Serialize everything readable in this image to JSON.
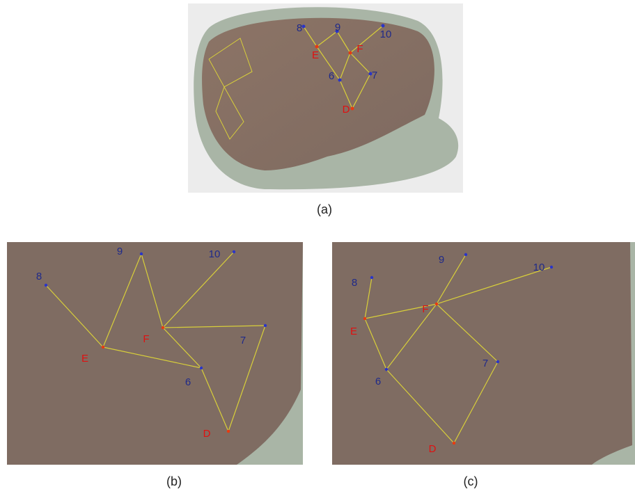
{
  "panels": [
    {
      "caption": "(a)",
      "points": [
        "8",
        "9",
        "10",
        "E",
        "F",
        "6",
        "7",
        "D"
      ]
    },
    {
      "caption": "(b)",
      "points": [
        "8",
        "9",
        "10",
        "E",
        "F",
        "6",
        "7",
        "D"
      ]
    },
    {
      "caption": "(c)",
      "points": [
        "8",
        "9",
        "10",
        "E",
        "F",
        "6",
        "7",
        "D"
      ]
    }
  ]
}
